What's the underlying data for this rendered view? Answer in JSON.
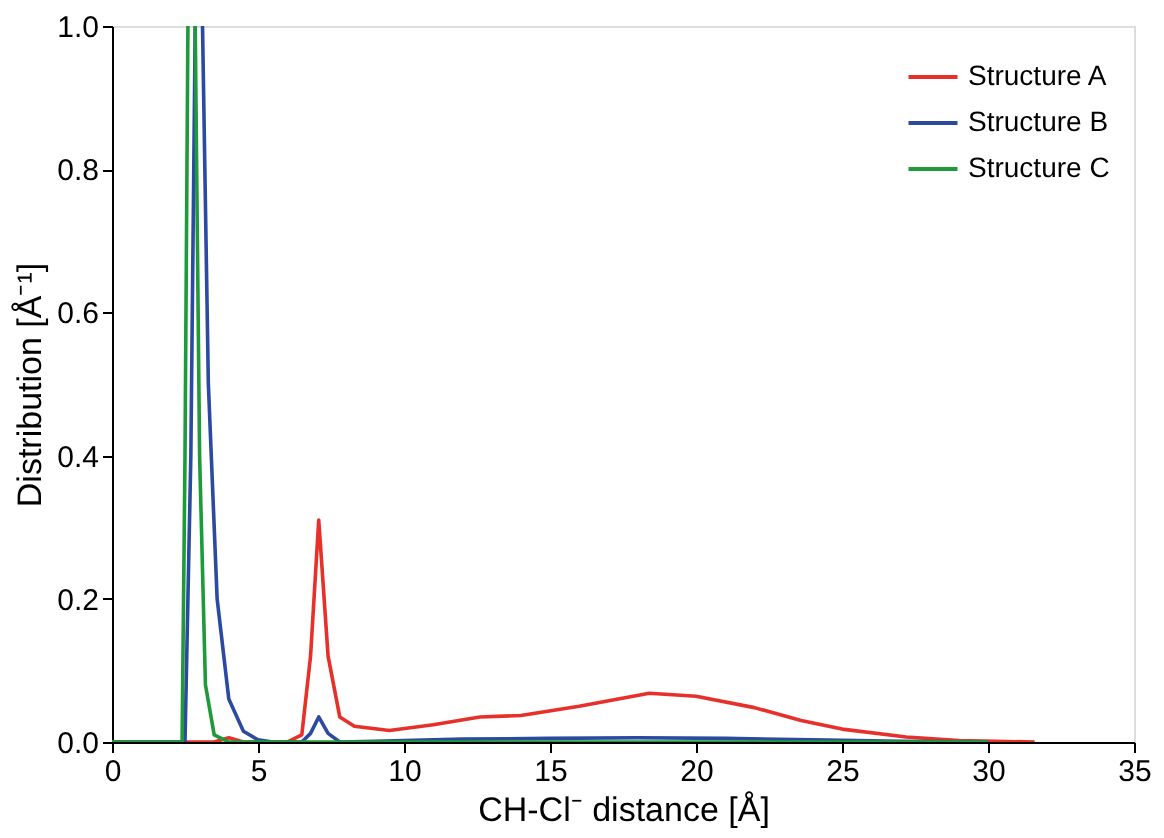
{
  "chart_data": {
    "type": "line",
    "xlabel": "CH-Cl⁻ distance [Å]",
    "ylabel": "Distribution [Å⁻¹]",
    "xlim": [
      0,
      35
    ],
    "ylim": [
      0,
      1.0
    ],
    "xticks": [
      0,
      5,
      10,
      15,
      20,
      25,
      30,
      35
    ],
    "yticks": [
      {
        "value": 0,
        "label": "0.0"
      },
      0.2,
      0.4,
      0.6,
      0.8,
      {
        "value": 1,
        "label": "1.0"
      }
    ],
    "grid": false,
    "legend": "top right",
    "marker": "none",
    "line_style": "solid",
    "series": [
      {
        "name": "Structure A",
        "color": "#e8302a",
        "x": [
          0,
          3.5,
          4.0,
          4.5,
          5.0,
          6.0,
          6.5,
          6.8,
          7.08,
          7.4,
          7.8,
          8.3,
          9.5,
          11,
          12.6,
          14,
          16,
          18.4,
          20,
          22,
          23.6,
          25,
          27.2,
          29,
          31.6
        ],
        "values": [
          0,
          0,
          0.006,
          0,
          0,
          0,
          0.01,
          0.12,
          0.31,
          0.12,
          0.035,
          0.022,
          0.016,
          0.024,
          0.035,
          0.037,
          0.05,
          0.068,
          0.064,
          0.048,
          0.03,
          0.018,
          0.007,
          0.002,
          0
        ]
      },
      {
        "name": "Structure B",
        "color": "#2b4aa0",
        "x": [
          0,
          2.5,
          2.7,
          2.85,
          2.9,
          3.0,
          3.1,
          3.3,
          3.6,
          4.0,
          4.5,
          5.0,
          5.5,
          6.5,
          6.8,
          7.08,
          7.4,
          7.8,
          9,
          12,
          15,
          18,
          21,
          24,
          27,
          30
        ],
        "values": [
          0,
          0,
          0.4,
          1.0,
          null,
          null,
          1.0,
          0.5,
          0.2,
          0.06,
          0.015,
          0.003,
          0,
          0,
          0.012,
          0.035,
          0.012,
          0,
          0.001,
          0.004,
          0.005,
          0.006,
          0.005,
          0.003,
          0.001,
          0
        ]
      },
      {
        "name": "Structure C",
        "color": "#1f9a3a",
        "x": [
          0,
          2.4,
          2.5,
          2.6,
          2.7,
          2.8,
          2.85,
          3.0,
          3.2,
          3.5,
          4.0,
          5.0,
          30
        ],
        "values": [
          0,
          0,
          0.4,
          1.0,
          null,
          null,
          1.0,
          0.4,
          0.08,
          0.01,
          0,
          0,
          0
        ]
      }
    ]
  }
}
